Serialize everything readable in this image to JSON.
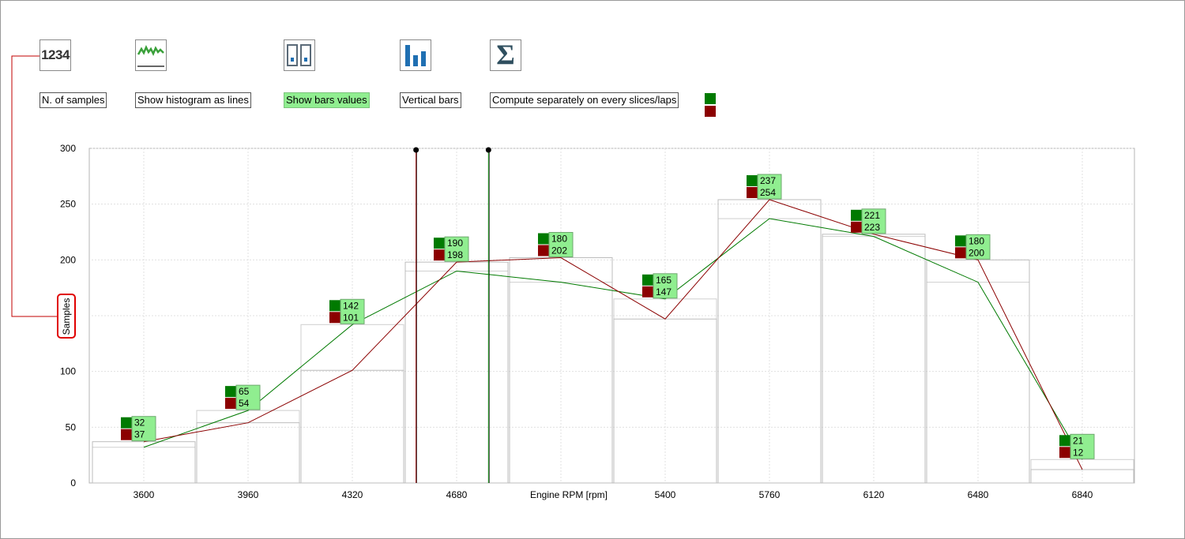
{
  "toolbar": {
    "items": [
      {
        "name": "n-samples",
        "icon": "numbers-1234-icon",
        "icon_text": "1234",
        "label": "N. of samples",
        "active": false
      },
      {
        "name": "histogram-lines",
        "icon": "wave-line-icon",
        "label": "Show histogram as lines",
        "active": false
      },
      {
        "name": "bars-values",
        "icon": "bar-values-icon",
        "label": "Show bars values",
        "active": true
      },
      {
        "name": "vertical-bars",
        "icon": "vertical-bars-icon",
        "label": "Vertical bars",
        "active": false
      },
      {
        "name": "compute-separately",
        "icon": "sigma-icon",
        "icon_text": "Σ",
        "label": "Compute separately on every slices/laps",
        "active": false
      }
    ]
  },
  "colors": {
    "series_green": "#007a00",
    "series_red": "#8b0000",
    "value_box": "#90ee90",
    "grid": "#e0e0e0",
    "accent_red": "#e00000"
  },
  "chart_data": {
    "type": "bar",
    "x": [
      3600,
      3960,
      4320,
      4680,
      5040,
      5400,
      5760,
      6120,
      6480,
      6840
    ],
    "xticks": [
      "3600",
      "3960",
      "4320",
      "4680",
      "",
      "5400",
      "5760",
      "6120",
      "6480",
      "6840"
    ],
    "xlabel": "Engine RPM [rpm]",
    "ylabel": "Samples",
    "ylim": [
      0,
      300
    ],
    "yticks": [
      0,
      50,
      100,
      150,
      200,
      250,
      300
    ],
    "ytick_labels": [
      "0",
      "50",
      "100",
      "",
      "200",
      "250",
      "300"
    ],
    "grid": true,
    "bar_width": 360,
    "series": [
      {
        "color": "#007a00",
        "values": [
          32,
          65,
          142,
          190,
          180,
          165,
          237,
          221,
          180,
          21
        ]
      },
      {
        "color": "#8b0000",
        "values": [
          37,
          54,
          101,
          198,
          202,
          147,
          254,
          223,
          200,
          12
        ]
      }
    ],
    "cursors": [
      {
        "x": 4540,
        "color": "#8b0000"
      },
      {
        "x": 4790,
        "color": "#007a00"
      }
    ]
  }
}
